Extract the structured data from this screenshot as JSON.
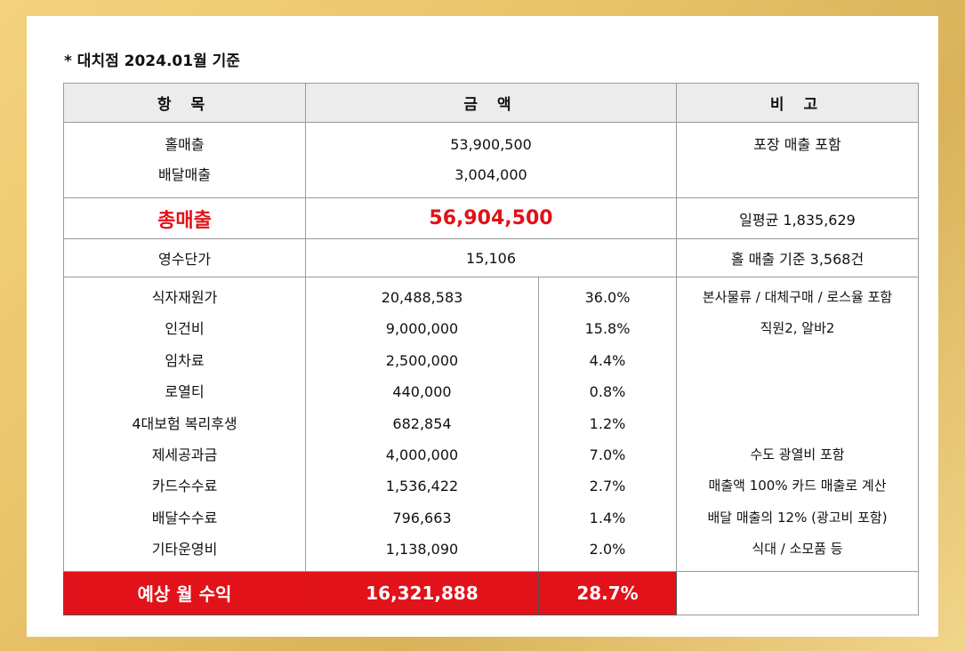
{
  "note": "* 대치점 2024.01월 기준",
  "headers": {
    "item": "항 목",
    "amount": "금 액",
    "remarks": "비 고"
  },
  "sales": {
    "items": [
      "홀매출",
      "배달매출"
    ],
    "amounts": [
      "53,900,500",
      "3,004,000"
    ],
    "remark": "포장 매출 포함"
  },
  "total": {
    "label": "총매출",
    "amount": "56,904,500",
    "remark": "일평균 1,835,629"
  },
  "unit_price": {
    "label": "영수단가",
    "amount": "15,106",
    "remark": "홀 매출 기준 3,568건"
  },
  "costs": [
    {
      "label": "식자재원가",
      "amount": "20,488,583",
      "pct": "36.0%",
      "remark": "본사물류 / 대체구매 / 로스율 포함"
    },
    {
      "label": "인건비",
      "amount": "9,000,000",
      "pct": "15.8%",
      "remark": "직원2, 알바2"
    },
    {
      "label": "임차료",
      "amount": "2,500,000",
      "pct": "4.4%",
      "remark": ""
    },
    {
      "label": "로열티",
      "amount": "440,000",
      "pct": "0.8%",
      "remark": ""
    },
    {
      "label": "4대보험 복리후생",
      "amount": "682,854",
      "pct": "1.2%",
      "remark": ""
    },
    {
      "label": "제세공과금",
      "amount": "4,000,000",
      "pct": "7.0%",
      "remark": "수도 광열비 포함"
    },
    {
      "label": "카드수수료",
      "amount": "1,536,422",
      "pct": "2.7%",
      "remark": "매출액 100% 카드 매출로 계산"
    },
    {
      "label": "배달수수료",
      "amount": "796,663",
      "pct": "1.4%",
      "remark": "배달 매출의 12% (광고비 포함)"
    },
    {
      "label": "기타운영비",
      "amount": "1,138,090",
      "pct": "2.0%",
      "remark": "식대 / 소모품 등"
    }
  ],
  "profit": {
    "label": "예상 월 수익",
    "amount": "16,321,888",
    "pct": "28.7%",
    "remark": ""
  },
  "colors": {
    "accent_red": "#e1121a",
    "header_gray": "#ececec"
  }
}
